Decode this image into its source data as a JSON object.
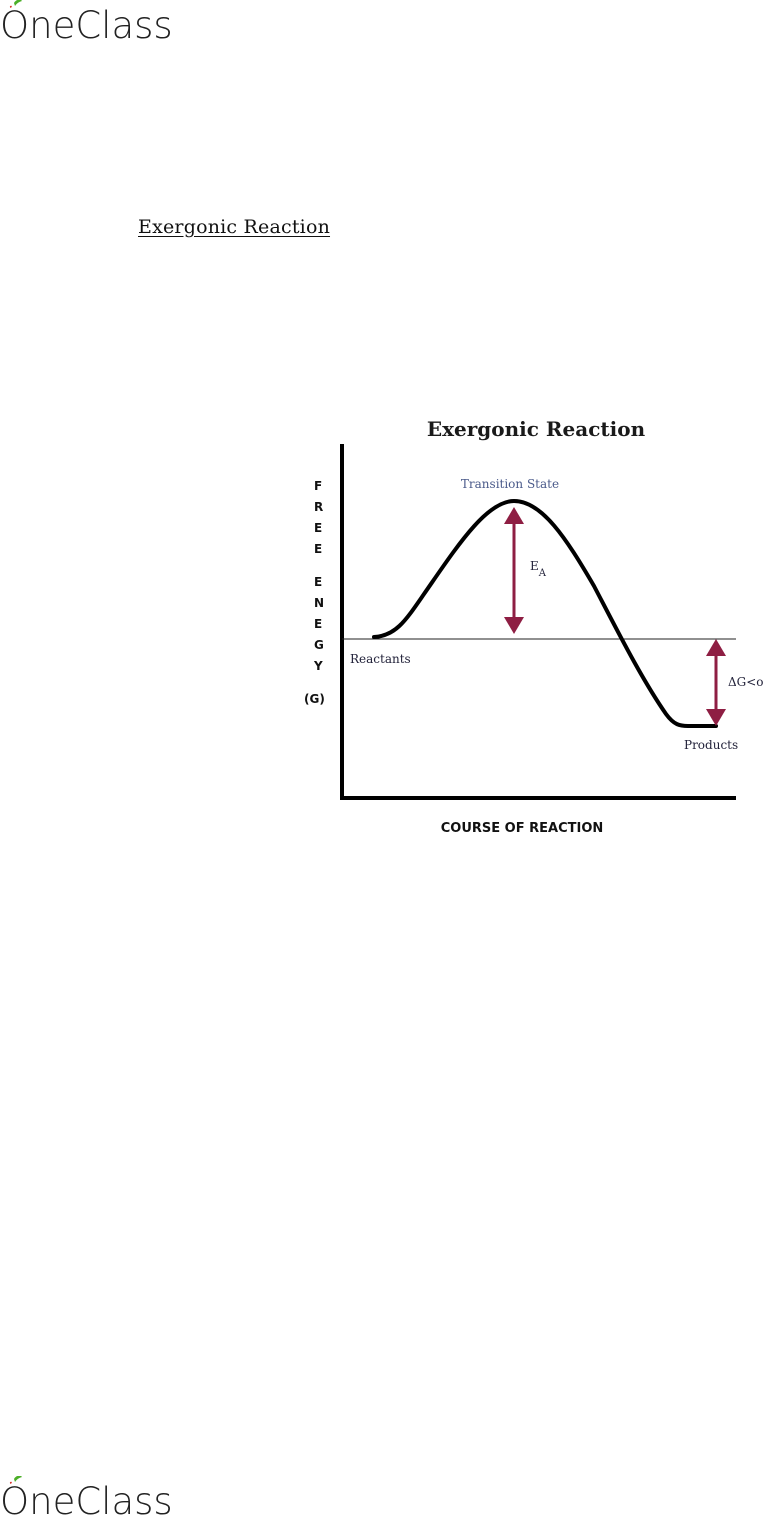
{
  "header": {
    "brand": "OneClass"
  },
  "footer": {
    "brand": "OneClass"
  },
  "document": {
    "heading": "Exergonic Reaction"
  },
  "figure": {
    "title": "Exergonic Reaction",
    "y_axis_letters": [
      "F",
      "R",
      "E",
      "E",
      "",
      "E",
      "N",
      "E",
      "G",
      "Y",
      "",
      "(G)"
    ],
    "x_axis_label": "COURSE OF REACTION",
    "labels": {
      "transition_state": "Transition State",
      "reactants": "Reactants",
      "products": "Products",
      "activation_energy": "E",
      "activation_energy_sub": "A",
      "delta_g": "ΔG<o"
    },
    "colors": {
      "arrow": "#8e1e43",
      "curve": "#000000",
      "brand_leaf": "#4caf28",
      "brand_apple": "#d8332a"
    }
  }
}
